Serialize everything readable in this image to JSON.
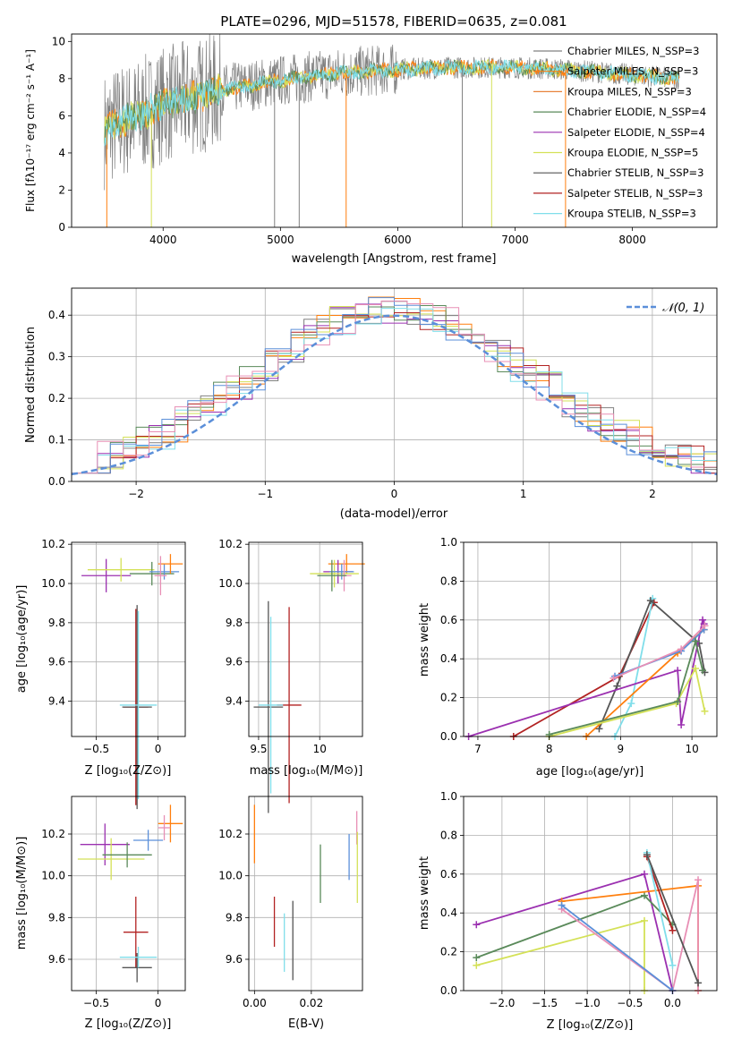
{
  "colors": {
    "chabrier_miles": "#808080",
    "salpeter_miles": "#ff7f0e",
    "kroupa_miles": "#e8833a",
    "chabrier_elodie": "#5a8a5a",
    "salpeter_elodie": "#9b30b0",
    "kroupa_elodie": "#d4e157",
    "chabrier_stelib": "#555555",
    "salpeter_stelib": "#b22222",
    "kroupa_stelib": "#80deea",
    "extra_blue": "#5b8fd9",
    "extra_pink": "#e88fb5",
    "gauss": "#5b8fd9"
  },
  "chart_data": [
    {
      "type": "line",
      "title": "PLATE=0296, MJD=51578, FIBERID=0635, z=0.081",
      "xlabel": "wavelength [Angstrom, rest frame]",
      "ylabel": "Flux [fλ10⁻¹⁷ erg cm⁻² s⁻¹ A⁻¹]",
      "xlim": [
        3220,
        8720
      ],
      "ylim": [
        0,
        10.4
      ],
      "xticks": [
        4000,
        5000,
        6000,
        7000,
        8000
      ],
      "yticks": [
        0,
        2,
        4,
        6,
        8,
        10
      ],
      "legend_position": "right",
      "series": [
        {
          "name": "Chabrier MILES, N_SSP=3",
          "color_key": "chabrier_miles"
        },
        {
          "name": "Salpeter MILES, N_SSP=3",
          "color_key": "salpeter_miles"
        },
        {
          "name": "Kroupa MILES, N_SSP=3",
          "color_key": "kroupa_miles"
        },
        {
          "name": "Chabrier ELODIE, N_SSP=4",
          "color_key": "chabrier_elodie"
        },
        {
          "name": "Salpeter ELODIE, N_SSP=4",
          "color_key": "salpeter_elodie"
        },
        {
          "name": "Kroupa ELODIE, N_SSP=5",
          "color_key": "kroupa_elodie"
        },
        {
          "name": "Chabrier STELIB, N_SSP=3",
          "color_key": "chabrier_stelib"
        },
        {
          "name": "Salpeter STELIB, N_SSP=3",
          "color_key": "salpeter_stelib"
        },
        {
          "name": "Kroupa STELIB, N_SSP=3",
          "color_key": "kroupa_stelib"
        }
      ],
      "continuum": {
        "x": [
          3500,
          3600,
          3800,
          4000,
          4200,
          4500,
          5000,
          5500,
          6000,
          6500,
          7000,
          7400,
          8000,
          8400
        ],
        "y": [
          5.2,
          5.6,
          6.0,
          6.6,
          6.9,
          7.4,
          7.9,
          8.3,
          8.5,
          8.6,
          8.6,
          8.5,
          8.2,
          8.0
        ]
      },
      "sharp_drops": [
        {
          "x": 3520,
          "color_key": "salpeter_miles"
        },
        {
          "x": 3900,
          "color_key": "kroupa_elodie"
        },
        {
          "x": 4950,
          "color_key": "chabrier_miles"
        },
        {
          "x": 5160,
          "color_key": "chabrier_miles"
        },
        {
          "x": 5560,
          "color_key": "salpeter_miles"
        },
        {
          "x": 6550,
          "color_key": "chabrier_miles"
        },
        {
          "x": 6800,
          "color_key": "kroupa_elodie"
        },
        {
          "x": 7430,
          "color_key": "salpeter_miles"
        }
      ]
    },
    {
      "type": "histogram",
      "xlabel": "(data-model)/error",
      "ylabel": "Normed distribution",
      "xlim": [
        -2.5,
        2.5
      ],
      "ylim": [
        0,
        0.465
      ],
      "xticks": [
        -2,
        -1,
        0,
        1,
        2
      ],
      "yticks": [
        0.0,
        0.1,
        0.2,
        0.3,
        0.4
      ],
      "legend": "𝒩(0, 1)",
      "bin_width": 0.2
    },
    {
      "type": "scatter",
      "xlabel": "Z [log₁₀(Z/Z⊙)]",
      "ylabel": "age  [log₁₀(age/yr)]",
      "xlim": [
        -0.7,
        0.22
      ],
      "ylim": [
        9.22,
        10.21
      ],
      "xticks": [
        -0.5,
        0.0
      ],
      "yticks": [
        9.4,
        9.6,
        9.8,
        10.0,
        10.2
      ],
      "points": [
        {
          "x": -0.42,
          "y": 10.04,
          "xerr": 0.2,
          "yerr": 0.085,
          "color_key": "salpeter_elodie"
        },
        {
          "x": -0.3,
          "y": 10.07,
          "xerr": 0.27,
          "yerr": 0.06,
          "color_key": "kroupa_elodie"
        },
        {
          "x": -0.05,
          "y": 10.05,
          "xerr": 0.18,
          "yerr": 0.06,
          "color_key": "chabrier_elodie"
        },
        {
          "x": 0.05,
          "y": 10.06,
          "xerr": 0.12,
          "yerr": 0.04,
          "color_key": "extra_blue"
        },
        {
          "x": 0.1,
          "y": 10.1,
          "xerr": 0.1,
          "yerr": 0.05,
          "color_key": "salpeter_miles"
        },
        {
          "x": 0.02,
          "y": 10.04,
          "xerr": 0.05,
          "yerr": 0.1,
          "color_key": "extra_pink"
        },
        {
          "x": -0.18,
          "y": 9.37,
          "xerr": 0.1,
          "yerr": 0.5,
          "color_key": "salpeter_stelib"
        },
        {
          "x": -0.17,
          "y": 9.37,
          "xerr": 0.12,
          "yerr": 0.52,
          "color_key": "chabrier_stelib"
        },
        {
          "x": -0.16,
          "y": 9.38,
          "xerr": 0.15,
          "yerr": 0.48,
          "color_key": "kroupa_stelib"
        }
      ]
    },
    {
      "type": "scatter",
      "xlabel": "mass [log₁₀(M/M⊙)]",
      "xlim": [
        9.42,
        10.35
      ],
      "ylim": [
        9.22,
        10.21
      ],
      "xticks": [
        9.5,
        10.0
      ],
      "yticks": [
        9.4,
        9.6,
        9.8,
        10.0,
        10.2
      ],
      "points": [
        {
          "x": 10.22,
          "y": 10.1,
          "xerr": 0.15,
          "yerr": 0.05,
          "color_key": "salpeter_miles"
        },
        {
          "x": 10.15,
          "y": 10.06,
          "xerr": 0.12,
          "yerr": 0.06,
          "color_key": "salpeter_elodie"
        },
        {
          "x": 10.12,
          "y": 10.05,
          "xerr": 0.2,
          "yerr": 0.07,
          "color_key": "kroupa_elodie"
        },
        {
          "x": 10.18,
          "y": 10.06,
          "xerr": 0.1,
          "yerr": 0.04,
          "color_key": "extra_blue"
        },
        {
          "x": 10.2,
          "y": 10.04,
          "xerr": 0.06,
          "yerr": 0.08,
          "color_key": "extra_pink"
        },
        {
          "x": 10.1,
          "y": 10.04,
          "xerr": 0.12,
          "yerr": 0.08,
          "color_key": "chabrier_elodie"
        },
        {
          "x": 9.75,
          "y": 9.38,
          "xerr": 0.1,
          "yerr": 0.5,
          "color_key": "salpeter_stelib"
        },
        {
          "x": 9.58,
          "y": 9.37,
          "xerr": 0.12,
          "yerr": 0.54,
          "color_key": "chabrier_stelib"
        },
        {
          "x": 9.6,
          "y": 9.38,
          "xerr": 0.1,
          "yerr": 0.45,
          "color_key": "kroupa_stelib"
        }
      ]
    },
    {
      "type": "line",
      "xlabel": "age  [log₁₀(age/yr)]",
      "ylabel": "mass weight",
      "xlim": [
        6.8,
        10.35
      ],
      "ylim": [
        0,
        1
      ],
      "xticks": [
        7,
        8,
        9,
        10
      ],
      "yticks": [
        0.0,
        0.2,
        0.4,
        0.6,
        0.8,
        1.0
      ],
      "series": [
        {
          "color_key": "salpeter_stelib",
          "x": [
            7.5,
            8.98,
            9.47
          ],
          "y": [
            0.0,
            0.31,
            0.69
          ]
        },
        {
          "color_key": "kroupa_stelib",
          "x": [
            8.92,
            9.15,
            9.45
          ],
          "y": [
            0.0,
            0.17,
            0.71
          ]
        },
        {
          "color_key": "chabrier_stelib",
          "x": [
            8.7,
            8.95,
            9.42,
            10.1,
            10.18
          ],
          "y": [
            0.04,
            0.26,
            0.7,
            0.48,
            0.33
          ]
        },
        {
          "color_key": "salpeter_elodie",
          "x": [
            6.87,
            9.8,
            9.85,
            10.15,
            10.17
          ],
          "y": [
            0.0,
            0.34,
            0.06,
            0.6,
            0.58
          ]
        },
        {
          "color_key": "salpeter_miles",
          "x": [
            8.52,
            9.8,
            10.17
          ],
          "y": [
            0.0,
            0.43,
            0.55
          ]
        },
        {
          "color_key": "extra_blue",
          "x": [
            8.92,
            9.85,
            10.17
          ],
          "y": [
            0.31,
            0.44,
            0.55
          ]
        },
        {
          "color_key": "extra_pink",
          "x": [
            8.9,
            9.85,
            10.18
          ],
          "y": [
            0.3,
            0.45,
            0.57
          ]
        },
        {
          "color_key": "kroupa_elodie",
          "x": [
            8.0,
            9.78,
            10.05,
            10.18
          ],
          "y": [
            0.0,
            0.17,
            0.35,
            0.13
          ]
        },
        {
          "color_key": "chabrier_elodie",
          "x": [
            8.0,
            9.8,
            10.05,
            10.15
          ],
          "y": [
            0.01,
            0.18,
            0.49,
            0.34
          ]
        }
      ]
    },
    {
      "type": "scatter",
      "xlabel": "Z [log₁₀(Z/Z⊙)]",
      "ylabel": "mass [log₁₀(M/M⊙)]",
      "xlim": [
        -0.7,
        0.22
      ],
      "ylim": [
        9.45,
        10.38
      ],
      "xticks": [
        -0.5,
        0.0
      ],
      "yticks": [
        9.6,
        9.8,
        10.0,
        10.2
      ],
      "points": [
        {
          "x": 0.1,
          "y": 10.25,
          "xerr": 0.1,
          "yerr": 0.09,
          "color_key": "salpeter_miles"
        },
        {
          "x": 0.05,
          "y": 10.23,
          "xerr": 0.05,
          "yerr": 0.06,
          "color_key": "extra_pink"
        },
        {
          "x": -0.43,
          "y": 10.15,
          "xerr": 0.2,
          "yerr": 0.1,
          "color_key": "salpeter_elodie"
        },
        {
          "x": -0.08,
          "y": 10.17,
          "xerr": 0.12,
          "yerr": 0.05,
          "color_key": "extra_blue"
        },
        {
          "x": -0.38,
          "y": 10.08,
          "xerr": 0.27,
          "yerr": 0.1,
          "color_key": "kroupa_elodie"
        },
        {
          "x": -0.25,
          "y": 10.1,
          "xerr": 0.2,
          "yerr": 0.06,
          "color_key": "chabrier_elodie"
        },
        {
          "x": -0.18,
          "y": 9.73,
          "xerr": 0.1,
          "yerr": 0.17,
          "color_key": "salpeter_stelib"
        },
        {
          "x": -0.17,
          "y": 9.56,
          "xerr": 0.12,
          "yerr": 0.07,
          "color_key": "chabrier_stelib"
        },
        {
          "x": -0.16,
          "y": 9.61,
          "xerr": 0.15,
          "yerr": 0.05,
          "color_key": "kroupa_stelib"
        }
      ]
    },
    {
      "type": "scatter",
      "xlabel": "E(B-V)",
      "xlim": [
        -0.002,
        0.038
      ],
      "ylim": [
        9.45,
        10.38
      ],
      "xticks": [
        0.0,
        0.02
      ],
      "xticklabels": [
        "0.00",
        "0.02"
      ],
      "yticks": [
        9.6,
        9.8,
        10.0,
        10.2
      ],
      "points": [
        {
          "x": 0.0,
          "y": 10.2,
          "yerr": 0.14,
          "color_key": "salpeter_miles"
        },
        {
          "x": 0.007,
          "y": 9.78,
          "yerr": 0.12,
          "color_key": "salpeter_stelib"
        },
        {
          "x": 0.0105,
          "y": 9.68,
          "yerr": 0.14,
          "color_key": "kroupa_stelib"
        },
        {
          "x": 0.0135,
          "y": 9.69,
          "yerr": 0.19,
          "color_key": "chabrier_stelib"
        },
        {
          "x": 0.0232,
          "y": 10.01,
          "yerr": 0.14,
          "color_key": "chabrier_elodie"
        },
        {
          "x": 0.0333,
          "y": 10.09,
          "yerr": 0.11,
          "color_key": "extra_blue"
        },
        {
          "x": 0.036,
          "y": 10.23,
          "yerr": 0.08,
          "color_key": "extra_pink"
        },
        {
          "x": 0.0362,
          "y": 10.04,
          "yerr": 0.17,
          "color_key": "kroupa_elodie"
        }
      ]
    },
    {
      "type": "line",
      "xlabel": "Z [log₁₀(Z/Z⊙)]",
      "ylabel": "mass weight",
      "xlim": [
        -2.45,
        0.52
      ],
      "ylim": [
        0,
        1
      ],
      "xticks": [
        -2.0,
        -1.5,
        -1.0,
        -0.5,
        0.0
      ],
      "xticklabels": [
        "−2.0",
        "−1.5",
        "−1.0",
        "−0.5",
        "0.0"
      ],
      "yticks": [
        0.0,
        0.2,
        0.4,
        0.6,
        0.8,
        1.0
      ],
      "series": [
        {
          "color_key": "salpeter_elodie",
          "x": [
            -2.3,
            -0.33,
            0.0
          ],
          "y": [
            0.34,
            0.6,
            0.0
          ]
        },
        {
          "color_key": "chabrier_elodie",
          "x": [
            -2.3,
            -0.33,
            0.0
          ],
          "y": [
            0.17,
            0.49,
            0.34
          ]
        },
        {
          "color_key": "kroupa_elodie",
          "x": [
            -2.3,
            -0.33,
            -0.33
          ],
          "y": [
            0.13,
            0.36,
            0.0
          ]
        },
        {
          "color_key": "salpeter_miles",
          "x": [
            -1.3,
            0.3,
            0.3
          ],
          "y": [
            0.46,
            0.54,
            0.0
          ]
        },
        {
          "color_key": "extra_pink",
          "x": [
            -1.3,
            0.0,
            0.3,
            0.3
          ],
          "y": [
            0.42,
            0.0,
            0.57,
            0.0
          ]
        },
        {
          "color_key": "extra_blue",
          "x": [
            -1.3,
            0.0
          ],
          "y": [
            0.44,
            0.0
          ]
        },
        {
          "color_key": "salpeter_stelib",
          "x": [
            -0.3,
            0.0
          ],
          "y": [
            0.69,
            0.31
          ]
        },
        {
          "color_key": "kroupa_stelib",
          "x": [
            -0.3,
            0.0
          ],
          "y": [
            0.71,
            0.13
          ]
        },
        {
          "color_key": "chabrier_stelib",
          "x": [
            -0.3,
            0.3
          ],
          "y": [
            0.7,
            0.04
          ]
        }
      ]
    }
  ]
}
